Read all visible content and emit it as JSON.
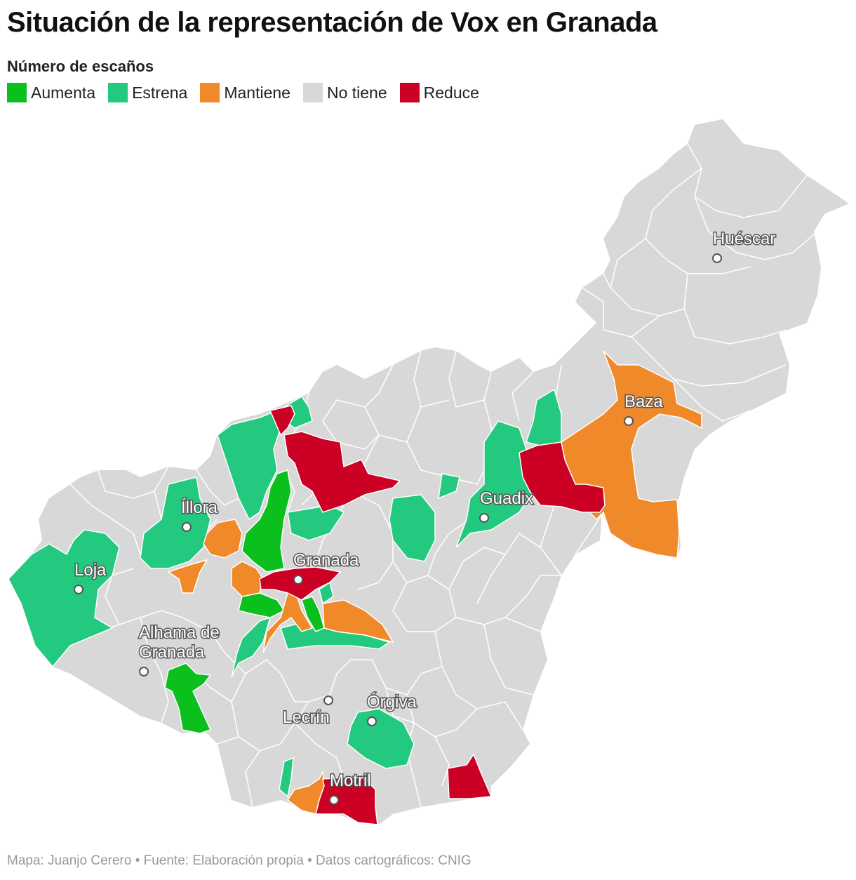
{
  "title": "Situación de la representación de Vox en Granada",
  "subtitle": "Número de escaños",
  "legend": [
    {
      "label": "Aumenta",
      "color": "#0bbf1c"
    },
    {
      "label": "Estrena",
      "color": "#22c97e"
    },
    {
      "label": "Mantiene",
      "color": "#f0892a"
    },
    {
      "label": "No tiene",
      "color": "#d8d8d8"
    },
    {
      "label": "Reduce",
      "color": "#cc0025"
    }
  ],
  "places": [
    {
      "name": "Huéscar"
    },
    {
      "name": "Baza"
    },
    {
      "name": "Guadix"
    },
    {
      "name": "Íllora"
    },
    {
      "name": "Granada"
    },
    {
      "name": "Loja"
    },
    {
      "name": "Alhama de",
      "name2": "Granada"
    },
    {
      "name": "Lecrín"
    },
    {
      "name": "Órgiva"
    },
    {
      "name": "Motril"
    }
  ],
  "footer": "Mapa: Juanjo Cerero • Fuente: Elaboración propia • Datos cartográficos: CNIG"
}
